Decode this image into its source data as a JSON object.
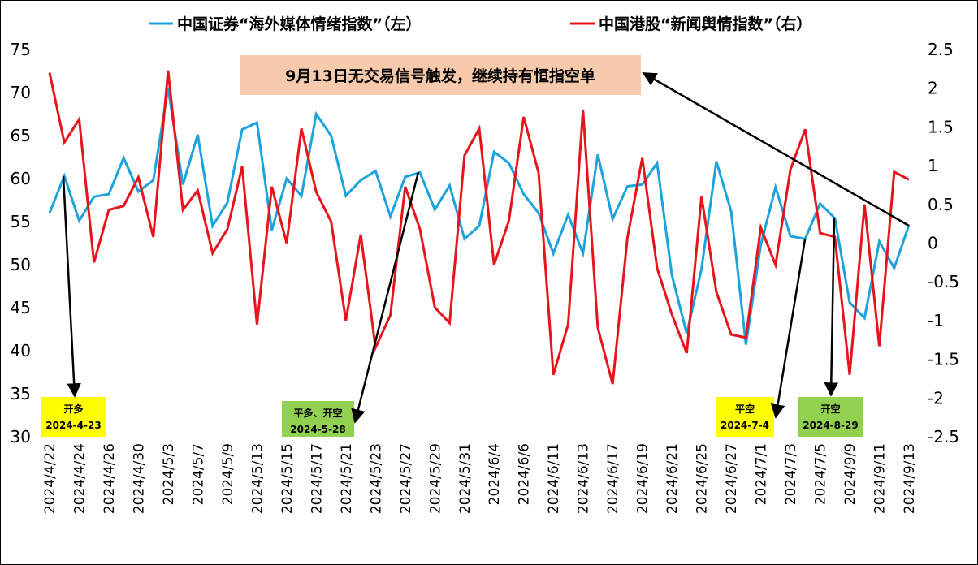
{
  "chart_data": {
    "type": "line",
    "legend": [
      {
        "label": "中国证券“海外媒体情绪指数”（左）",
        "color": "#1aa3dc"
      },
      {
        "label": "中国港股“新闻舆情指数”（右）",
        "color": "#e8141b"
      }
    ],
    "headline": "9月13日无交易信号触发，继续持有恒指空单",
    "headline_bg": "#f7caac",
    "y_left": {
      "ticks": [
        "75",
        "70",
        "65",
        "60",
        "55",
        "50",
        "45",
        "40",
        "35",
        "30"
      ],
      "lim": [
        30,
        75
      ]
    },
    "y_right": {
      "ticks": [
        "2.5",
        "2",
        "1.5",
        "1",
        "0.5",
        "0",
        "-0.5",
        "-1",
        "-1.5",
        "-2",
        "-2.5"
      ],
      "lim": [
        -2.5,
        2.5
      ]
    },
    "x_tick_labels": [
      "2024/4/22",
      "2024/4/24",
      "2024/4/26",
      "2024/4/30",
      "2024/5/3",
      "2024/5/7",
      "2024/5/9",
      "2024/5/13",
      "2024/5/15",
      "2024/5/17",
      "2024/5/21",
      "2024/5/23",
      "2024/5/27",
      "2024/5/29",
      "2024/5/31",
      "2024/6/4",
      "2024/6/6",
      "2024/6/11",
      "2024/6/13",
      "2024/6/17",
      "2024/6/19",
      "2024/6/21",
      "2024/6/25",
      "2024/6/27",
      "2024/7/1",
      "2024/7/3",
      "2024/7/5",
      "2024/9/9",
      "2024/9/11",
      "2024/9/13"
    ],
    "series": [
      {
        "name": "中国证券“海外媒体情绪指数”（左）",
        "axis": "left",
        "color": "#1aa3dc",
        "values": [
          56,
          60.3,
          55.1,
          57.9,
          58.2,
          62.4,
          58.5,
          59.8,
          70.5,
          59.3,
          65.1,
          54.5,
          57.2,
          65.7,
          66.5,
          54.0,
          60.0,
          58.0,
          67.5,
          65.0,
          58.0,
          59.8,
          60.9,
          55.6,
          60.2,
          60.7,
          56.4,
          59.2,
          53.0,
          54.5,
          63.1,
          61.8,
          58.2,
          56.0,
          51.3,
          55.8,
          51.3,
          62.8,
          55.3,
          59.1,
          59.3,
          61.8,
          48.8,
          42.0,
          49.5,
          62.0,
          56.2,
          40.7,
          52.3,
          59.0,
          53.3,
          53.0,
          57.1,
          55.4,
          45.6,
          43.8,
          52.7,
          49.6,
          54.6
        ]
      },
      {
        "name": "中国港股“新闻舆情指数”（右）",
        "axis": "right",
        "color": "#e8141b",
        "values": [
          2.2,
          1.3,
          1.6,
          -0.25,
          0.43,
          0.48,
          0.85,
          0.08,
          2.23,
          0.43,
          0.68,
          -0.13,
          0.18,
          0.99,
          -1.05,
          0.73,
          0.0,
          1.48,
          0.66,
          0.28,
          -1.0,
          0.11,
          -1.35,
          -0.93,
          0.73,
          0.18,
          -0.83,
          -1.03,
          1.13,
          1.48,
          -0.28,
          0.29,
          1.63,
          0.91,
          -1.7,
          -1.05,
          1.72,
          -1.09,
          -1.82,
          0.07,
          1.1,
          -0.32,
          -0.92,
          -1.42,
          0.6,
          -0.63,
          -1.18,
          -1.22,
          0.2,
          -0.28,
          0.95,
          1.47,
          0.13,
          0.08,
          -1.7,
          0.5,
          -1.33,
          0.92,
          0.82
        ]
      }
    ],
    "annotations": [
      {
        "lines": [
          "开多",
          "2024-4-23"
        ],
        "bg": "#ffff00"
      },
      {
        "lines": [
          "平多、开空",
          "2024-5-28"
        ],
        "bg": "#92d050"
      },
      {
        "lines": [
          "平空",
          "2024-7-4"
        ],
        "bg": "#ffff00"
      },
      {
        "lines": [
          "开空",
          "2024-8-29"
        ],
        "bg": "#92d050"
      }
    ]
  }
}
